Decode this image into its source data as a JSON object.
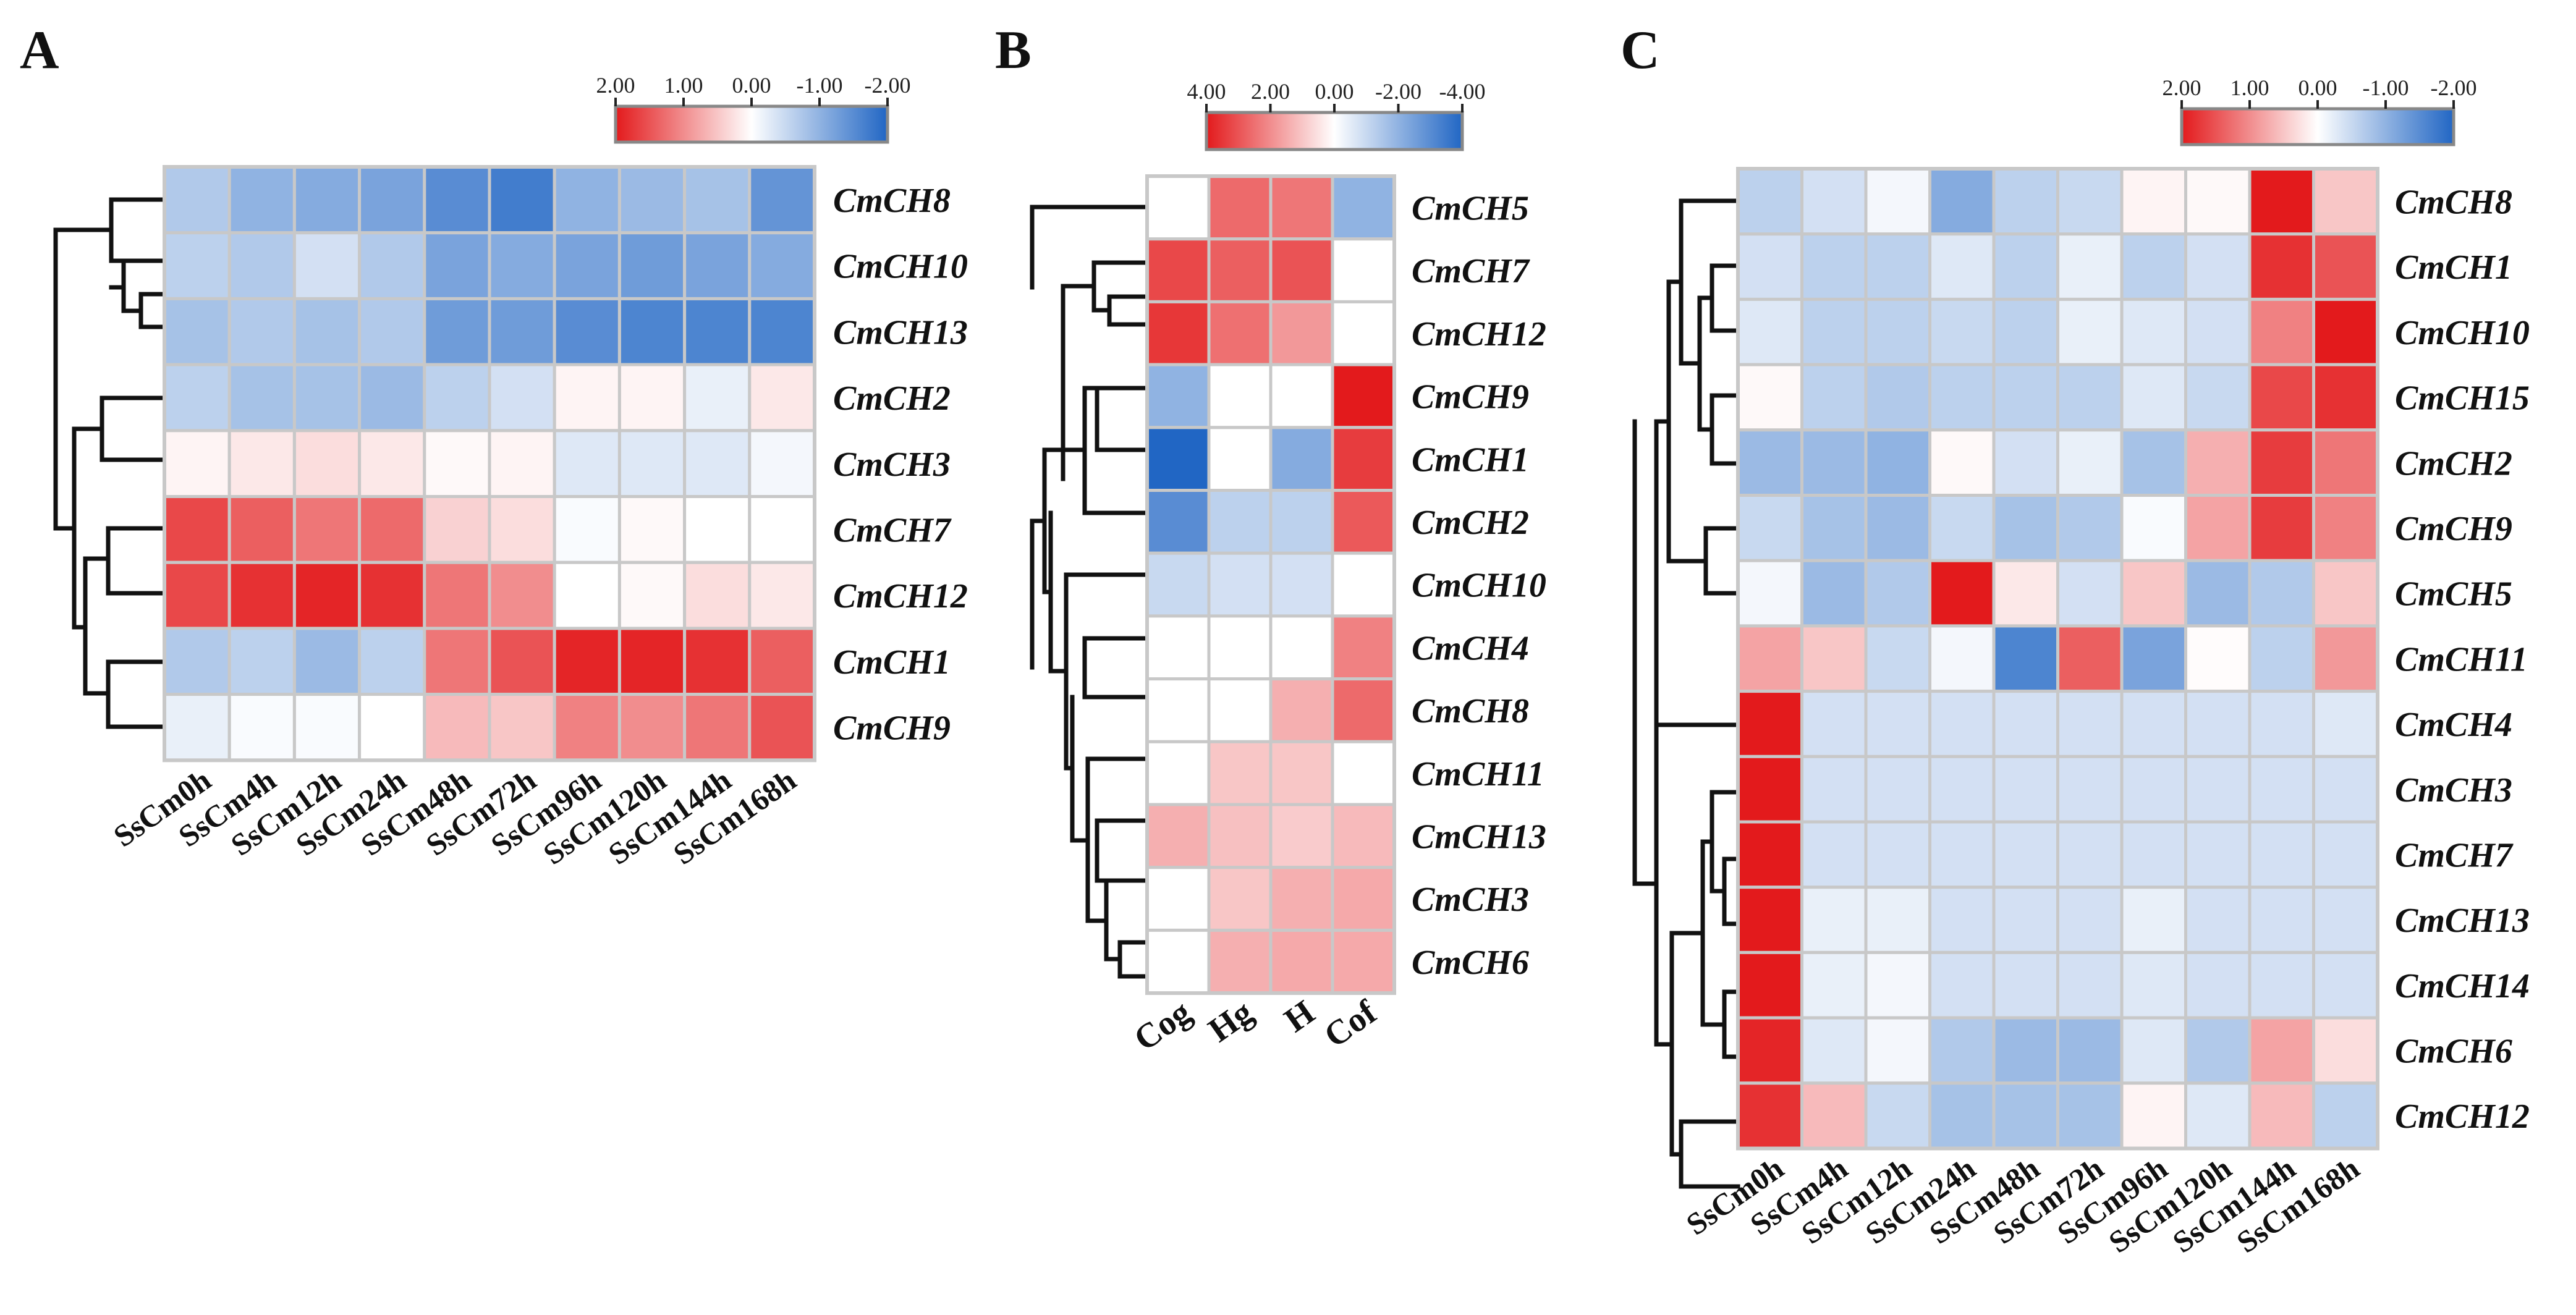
{
  "figure": {
    "description_free": true,
    "colors": {
      "high": "#e31a1c",
      "mid": "#ffffff",
      "low": "#2166c4",
      "grid": "#c8c8c8",
      "legend_border": "#888888"
    }
  },
  "chart_data": [
    {
      "type": "heatmap",
      "panel": "A",
      "title": "",
      "rows": [
        "CmCH8",
        "CmCH10",
        "CmCH13",
        "CmCH2",
        "CmCH3",
        "CmCH7",
        "CmCH12",
        "CmCH1",
        "CmCH9"
      ],
      "columns": [
        "SsCm0h",
        "SsCm4h",
        "SsCm12h",
        "SsCm24h",
        "SsCm48h",
        "SsCm72h",
        "SsCm96h",
        "SsCm120h",
        "SsCm144h",
        "SsCm168h"
      ],
      "values": [
        [
          -0.7,
          -1.0,
          -1.1,
          -1.2,
          -1.5,
          -1.7,
          -1.0,
          -0.9,
          -0.8,
          -1.4
        ],
        [
          -0.6,
          -0.7,
          -0.4,
          -0.7,
          -1.2,
          -1.1,
          -1.2,
          -1.3,
          -1.2,
          -1.1
        ],
        [
          -0.8,
          -0.7,
          -0.8,
          -0.7,
          -1.3,
          -1.3,
          -1.5,
          -1.6,
          -1.6,
          -1.6
        ],
        [
          -0.6,
          -0.8,
          -0.8,
          -0.9,
          -0.6,
          -0.4,
          0.1,
          0.1,
          -0.2,
          0.2
        ],
        [
          0.1,
          0.2,
          0.3,
          0.2,
          0.05,
          0.1,
          -0.3,
          -0.3,
          -0.3,
          -0.1
        ],
        [
          1.6,
          1.4,
          1.2,
          1.3,
          0.4,
          0.3,
          -0.05,
          0.05,
          0.0,
          0.0
        ],
        [
          1.6,
          1.8,
          1.9,
          1.8,
          1.2,
          1.0,
          0.0,
          0.05,
          0.3,
          0.2
        ],
        [
          -0.7,
          -0.6,
          -0.9,
          -0.6,
          1.2,
          1.5,
          1.9,
          1.9,
          1.8,
          1.4
        ],
        [
          -0.2,
          -0.05,
          -0.05,
          0.0,
          0.6,
          0.5,
          1.1,
          1.0,
          1.2,
          1.5
        ]
      ],
      "color_scale": {
        "ticks": [
          "2.00",
          "1.00",
          "0.00",
          "-1.00",
          "-2.00"
        ],
        "range": [
          -2,
          2
        ]
      }
    },
    {
      "type": "heatmap",
      "panel": "B",
      "title": "",
      "rows": [
        "CmCH5",
        "CmCH7",
        "CmCH12",
        "CmCH9",
        "CmCH1",
        "CmCH2",
        "CmCH10",
        "CmCH4",
        "CmCH8",
        "CmCH11",
        "CmCH13",
        "CmCH3",
        "CmCH6"
      ],
      "columns": [
        "Cog",
        "Hg",
        "H",
        "Cof"
      ],
      "values": [
        [
          0.0,
          2.6,
          2.4,
          -2.0
        ],
        [
          3.2,
          2.8,
          3.0,
          0.0
        ],
        [
          3.5,
          2.5,
          1.8,
          0.0
        ],
        [
          -2.0,
          0.0,
          0.0,
          4.0
        ],
        [
          -4.0,
          0.0,
          -2.2,
          3.4
        ],
        [
          -3.0,
          -1.2,
          -1.2,
          2.9
        ],
        [
          -1.0,
          -0.8,
          -0.8,
          0.0
        ],
        [
          0.0,
          0.0,
          0.0,
          2.2
        ],
        [
          0.0,
          0.0,
          1.4,
          2.6
        ],
        [
          0.0,
          1.0,
          1.0,
          0.0
        ],
        [
          1.4,
          1.1,
          0.9,
          1.2
        ],
        [
          0.0,
          1.0,
          1.4,
          1.5
        ],
        [
          0.0,
          1.4,
          1.5,
          1.5
        ]
      ],
      "color_scale": {
        "ticks": [
          "4.00",
          "2.00",
          "0.00",
          "-2.00",
          "-4.00"
        ],
        "range": [
          -4,
          4
        ]
      }
    },
    {
      "type": "heatmap",
      "panel": "C",
      "title": "",
      "rows": [
        "CmCH8",
        "CmCH1",
        "CmCH10",
        "CmCH15",
        "CmCH2",
        "CmCH9",
        "CmCH5",
        "CmCH11",
        "CmCH4",
        "CmCH3",
        "CmCH7",
        "CmCH13",
        "CmCH14",
        "CmCH6",
        "CmCH12"
      ],
      "columns": [
        "SsCm0h",
        "SsCm4h",
        "SsCm12h",
        "SsCm24h",
        "SsCm48h",
        "SsCm72h",
        "SsCm96h",
        "SsCm120h",
        "SsCm144h",
        "SsCm168h"
      ],
      "values": [
        [
          -0.6,
          -0.4,
          -0.1,
          -1.1,
          -0.6,
          -0.5,
          0.1,
          0.05,
          2.0,
          0.5
        ],
        [
          -0.4,
          -0.6,
          -0.6,
          -0.3,
          -0.6,
          -0.2,
          -0.6,
          -0.4,
          1.8,
          1.5
        ],
        [
          -0.3,
          -0.6,
          -0.6,
          -0.5,
          -0.6,
          -0.2,
          -0.3,
          -0.4,
          1.1,
          2.0
        ],
        [
          0.05,
          -0.6,
          -0.7,
          -0.6,
          -0.6,
          -0.6,
          -0.3,
          -0.5,
          1.6,
          1.8
        ],
        [
          -0.9,
          -0.9,
          -1.0,
          0.05,
          -0.4,
          -0.2,
          -0.8,
          0.7,
          1.7,
          1.2
        ],
        [
          -0.5,
          -0.8,
          -0.9,
          -0.5,
          -0.8,
          -0.7,
          -0.05,
          0.8,
          1.7,
          1.1
        ],
        [
          -0.1,
          -0.9,
          -0.7,
          2.0,
          0.2,
          -0.4,
          0.5,
          -0.9,
          -0.7,
          0.5
        ],
        [
          0.8,
          0.5,
          -0.5,
          -0.1,
          -1.6,
          1.4,
          -1.2,
          0.03,
          -0.6,
          0.9
        ],
        [
          2.0,
          -0.4,
          -0.4,
          -0.4,
          -0.4,
          -0.4,
          -0.4,
          -0.4,
          -0.4,
          -0.3
        ],
        [
          2.0,
          -0.4,
          -0.4,
          -0.4,
          -0.4,
          -0.4,
          -0.4,
          -0.4,
          -0.4,
          -0.4
        ],
        [
          2.0,
          -0.4,
          -0.4,
          -0.4,
          -0.4,
          -0.4,
          -0.4,
          -0.4,
          -0.4,
          -0.4
        ],
        [
          2.0,
          -0.2,
          -0.2,
          -0.4,
          -0.4,
          -0.4,
          -0.2,
          -0.4,
          -0.4,
          -0.4
        ],
        [
          2.0,
          -0.2,
          -0.1,
          -0.4,
          -0.4,
          -0.4,
          -0.3,
          -0.4,
          -0.4,
          -0.4
        ],
        [
          1.9,
          -0.3,
          -0.1,
          -0.7,
          -0.9,
          -0.9,
          -0.3,
          -0.7,
          0.8,
          0.3
        ],
        [
          1.8,
          0.6,
          -0.5,
          -0.8,
          -0.8,
          -0.8,
          0.1,
          -0.3,
          0.6,
          -0.6
        ]
      ],
      "color_scale": {
        "ticks": [
          "2.00",
          "1.00",
          "0.00",
          "-1.00",
          "-2.00"
        ],
        "range": [
          -2,
          2
        ]
      }
    }
  ]
}
